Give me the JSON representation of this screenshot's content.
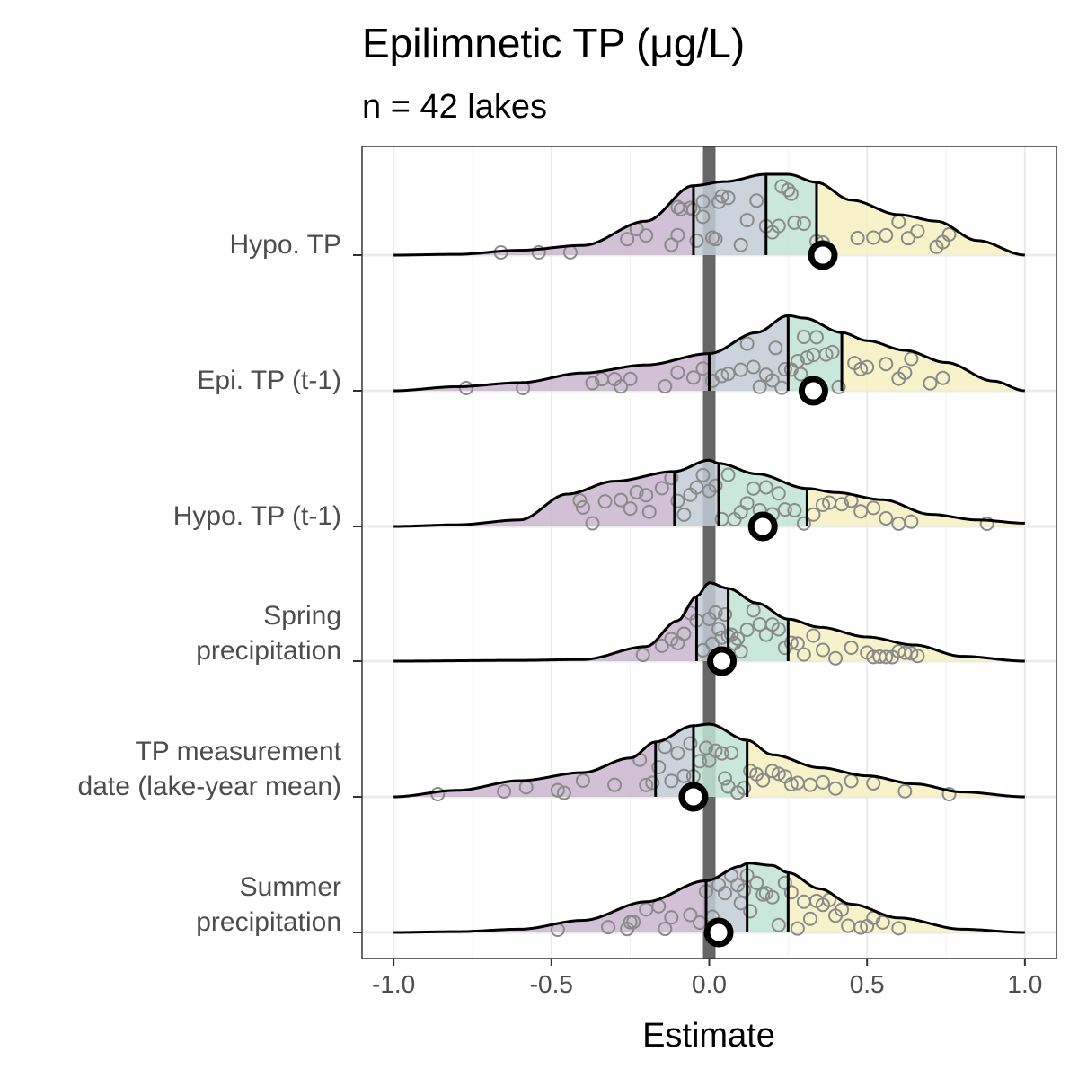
{
  "chart_data": {
    "type": "ridgeline",
    "title": "Epilimnetic TP (μg/L)",
    "subtitle": "n = 42 lakes",
    "xlabel": "Estimate",
    "ylabel": "",
    "xlim": [
      -1.1,
      1.1
    ],
    "x_ticks": [
      -1.0,
      -0.5,
      0.0,
      0.5,
      1.0
    ],
    "x_tick_labels": [
      "-1.0",
      "-0.5",
      "0.0",
      "0.5",
      "1.0"
    ],
    "grid": true,
    "reference_line_x": 0,
    "quartile_colors": [
      "#c9b5cf",
      "#c2cdd6",
      "#c0e3d3",
      "#f6f0c1"
    ],
    "rows": [
      {
        "label": "Hypo. TP",
        "label_lines": [
          "Hypo. TP"
        ],
        "density": [
          [
            -1.0,
            0.0
          ],
          [
            -0.8,
            0.01
          ],
          [
            -0.6,
            0.06
          ],
          [
            -0.4,
            0.12
          ],
          [
            -0.2,
            0.42
          ],
          [
            -0.05,
            0.86
          ],
          [
            0.05,
            0.91
          ],
          [
            0.18,
            1.0
          ],
          [
            0.25,
            1.0
          ],
          [
            0.34,
            0.9
          ],
          [
            0.45,
            0.68
          ],
          [
            0.6,
            0.5
          ],
          [
            0.72,
            0.42
          ],
          [
            0.85,
            0.18
          ],
          [
            1.0,
            0.0
          ]
        ],
        "quartiles": [
          -0.05,
          0.18,
          0.34
        ],
        "estimate": 0.36,
        "points": [
          -0.66,
          -0.54,
          -0.44,
          -0.23,
          -0.2,
          -0.26,
          -0.12,
          -0.1,
          -0.05,
          -0.02,
          -0.06,
          -0.1,
          -0.09,
          -0.04,
          -0.02,
          0.01,
          0.02,
          0.03,
          0.04,
          0.06,
          0.1,
          0.12,
          0.15,
          0.18,
          0.2,
          0.22,
          0.23,
          0.25,
          0.27,
          0.3,
          0.26,
          0.34,
          0.36,
          0.47,
          0.52,
          0.56,
          0.6,
          0.63,
          0.66,
          0.72,
          0.74,
          0.76
        ]
      },
      {
        "label": "Epi. TP (t-1)",
        "label_lines": [
          "Epi. TP (t-1)"
        ],
        "density": [
          [
            -1.0,
            0.0
          ],
          [
            -0.8,
            0.05
          ],
          [
            -0.6,
            0.1
          ],
          [
            -0.4,
            0.22
          ],
          [
            -0.2,
            0.32
          ],
          [
            0.0,
            0.46
          ],
          [
            0.15,
            0.72
          ],
          [
            0.25,
            0.93
          ],
          [
            0.3,
            0.9
          ],
          [
            0.42,
            0.72
          ],
          [
            0.5,
            0.62
          ],
          [
            0.62,
            0.5
          ],
          [
            0.75,
            0.35
          ],
          [
            0.9,
            0.12
          ],
          [
            1.0,
            0.0
          ]
        ],
        "quartiles": [
          0.0,
          0.25,
          0.42
        ],
        "estimate": 0.33,
        "points": [
          -0.77,
          -0.59,
          -0.37,
          -0.34,
          -0.3,
          -0.28,
          -0.25,
          -0.14,
          -0.1,
          -0.05,
          -0.02,
          0.01,
          0.04,
          0.06,
          0.1,
          0.12,
          0.14,
          0.16,
          0.18,
          0.2,
          0.21,
          0.23,
          0.24,
          0.26,
          0.28,
          0.29,
          0.3,
          0.31,
          0.33,
          0.34,
          0.37,
          0.39,
          0.41,
          0.46,
          0.48,
          0.5,
          0.56,
          0.6,
          0.62,
          0.64,
          0.7,
          0.74
        ]
      },
      {
        "label": "Hypo. TP (t-1)",
        "label_lines": [
          "Hypo. TP (t-1)"
        ],
        "density": [
          [
            -1.0,
            0.0
          ],
          [
            -0.8,
            0.02
          ],
          [
            -0.6,
            0.08
          ],
          [
            -0.45,
            0.4
          ],
          [
            -0.3,
            0.56
          ],
          [
            -0.11,
            0.68
          ],
          [
            0.0,
            0.82
          ],
          [
            0.03,
            0.78
          ],
          [
            0.15,
            0.65
          ],
          [
            0.31,
            0.47
          ],
          [
            0.4,
            0.42
          ],
          [
            0.55,
            0.33
          ],
          [
            0.7,
            0.15
          ],
          [
            0.85,
            0.08
          ],
          [
            1.0,
            0.04
          ]
        ],
        "quartiles": [
          -0.11,
          0.03,
          0.31
        ],
        "estimate": 0.17,
        "points": [
          -0.41,
          -0.4,
          -0.37,
          -0.33,
          -0.28,
          -0.25,
          -0.23,
          -0.2,
          -0.19,
          -0.15,
          -0.12,
          -0.1,
          -0.08,
          -0.06,
          -0.04,
          -0.02,
          0.0,
          0.02,
          0.04,
          0.06,
          0.08,
          0.1,
          0.12,
          0.14,
          0.16,
          0.18,
          0.2,
          0.22,
          0.24,
          0.27,
          0.3,
          0.33,
          0.36,
          0.38,
          0.42,
          0.45,
          0.48,
          0.52,
          0.56,
          0.6,
          0.64,
          0.88
        ]
      },
      {
        "label": "Spring precipitation",
        "label_lines": [
          "Spring",
          "precipitation"
        ],
        "density": [
          [
            -1.0,
            0.0
          ],
          [
            -0.6,
            0.01
          ],
          [
            -0.4,
            0.02
          ],
          [
            -0.2,
            0.18
          ],
          [
            -0.1,
            0.5
          ],
          [
            -0.04,
            0.8
          ],
          [
            0.0,
            0.97
          ],
          [
            0.06,
            0.9
          ],
          [
            0.15,
            0.72
          ],
          [
            0.25,
            0.52
          ],
          [
            0.35,
            0.42
          ],
          [
            0.5,
            0.3
          ],
          [
            0.65,
            0.2
          ],
          [
            0.8,
            0.06
          ],
          [
            1.0,
            0.0
          ]
        ],
        "quartiles": [
          -0.04,
          0.06,
          0.25
        ],
        "estimate": 0.04,
        "points": [
          -0.21,
          -0.15,
          -0.12,
          -0.1,
          -0.08,
          -0.06,
          -0.04,
          -0.02,
          0.0,
          0.01,
          0.02,
          0.03,
          0.04,
          0.05,
          0.06,
          0.07,
          0.08,
          0.09,
          0.1,
          0.12,
          0.14,
          0.16,
          0.18,
          0.2,
          0.22,
          0.24,
          0.26,
          0.28,
          0.3,
          0.33,
          0.36,
          0.4,
          0.45,
          0.5,
          0.52,
          0.54,
          0.56,
          0.58,
          0.6,
          0.62,
          0.64,
          0.66
        ]
      },
      {
        "label": "TP measurement date (lake-year mean)",
        "label_lines": [
          "TP measurement",
          "date (lake-year mean)"
        ],
        "density": [
          [
            -1.0,
            0.0
          ],
          [
            -0.8,
            0.08
          ],
          [
            -0.6,
            0.2
          ],
          [
            -0.4,
            0.3
          ],
          [
            -0.25,
            0.48
          ],
          [
            -0.17,
            0.68
          ],
          [
            -0.05,
            0.88
          ],
          [
            0.0,
            0.9
          ],
          [
            0.12,
            0.7
          ],
          [
            0.2,
            0.52
          ],
          [
            0.35,
            0.36
          ],
          [
            0.5,
            0.26
          ],
          [
            0.65,
            0.16
          ],
          [
            0.8,
            0.06
          ],
          [
            1.0,
            0.0
          ]
        ],
        "quartiles": [
          -0.17,
          -0.05,
          0.12
        ],
        "estimate": -0.05,
        "points": [
          -0.86,
          -0.65,
          -0.58,
          -0.48,
          -0.46,
          -0.4,
          -0.3,
          -0.22,
          -0.2,
          -0.18,
          -0.16,
          -0.14,
          -0.12,
          -0.1,
          -0.08,
          -0.06,
          -0.05,
          -0.03,
          -0.01,
          0.0,
          0.02,
          0.04,
          0.05,
          0.06,
          0.07,
          0.09,
          0.11,
          0.13,
          0.15,
          0.17,
          0.2,
          0.22,
          0.24,
          0.26,
          0.28,
          0.32,
          0.36,
          0.4,
          0.45,
          0.52,
          0.62,
          0.76
        ]
      },
      {
        "label": "Summer precipitation",
        "label_lines": [
          "Summer",
          "precipitation"
        ],
        "density": [
          [
            -1.0,
            0.0
          ],
          [
            -0.8,
            0.01
          ],
          [
            -0.6,
            0.04
          ],
          [
            -0.4,
            0.15
          ],
          [
            -0.2,
            0.38
          ],
          [
            -0.01,
            0.64
          ],
          [
            0.1,
            0.82
          ],
          [
            0.12,
            0.86
          ],
          [
            0.2,
            0.83
          ],
          [
            0.25,
            0.74
          ],
          [
            0.35,
            0.54
          ],
          [
            0.45,
            0.35
          ],
          [
            0.6,
            0.18
          ],
          [
            0.8,
            0.04
          ],
          [
            1.0,
            0.0
          ]
        ],
        "quartiles": [
          -0.01,
          0.12,
          0.25
        ],
        "estimate": 0.03,
        "points": [
          -0.48,
          -0.32,
          -0.26,
          -0.25,
          -0.24,
          -0.2,
          -0.16,
          -0.14,
          -0.12,
          -0.06,
          -0.03,
          -0.01,
          0.01,
          0.03,
          0.05,
          0.07,
          0.09,
          0.1,
          0.11,
          0.12,
          0.13,
          0.15,
          0.17,
          0.18,
          0.2,
          0.22,
          0.24,
          0.26,
          0.28,
          0.3,
          0.32,
          0.34,
          0.36,
          0.38,
          0.4,
          0.42,
          0.44,
          0.48,
          0.5,
          0.52,
          0.55,
          0.6
        ]
      }
    ]
  }
}
